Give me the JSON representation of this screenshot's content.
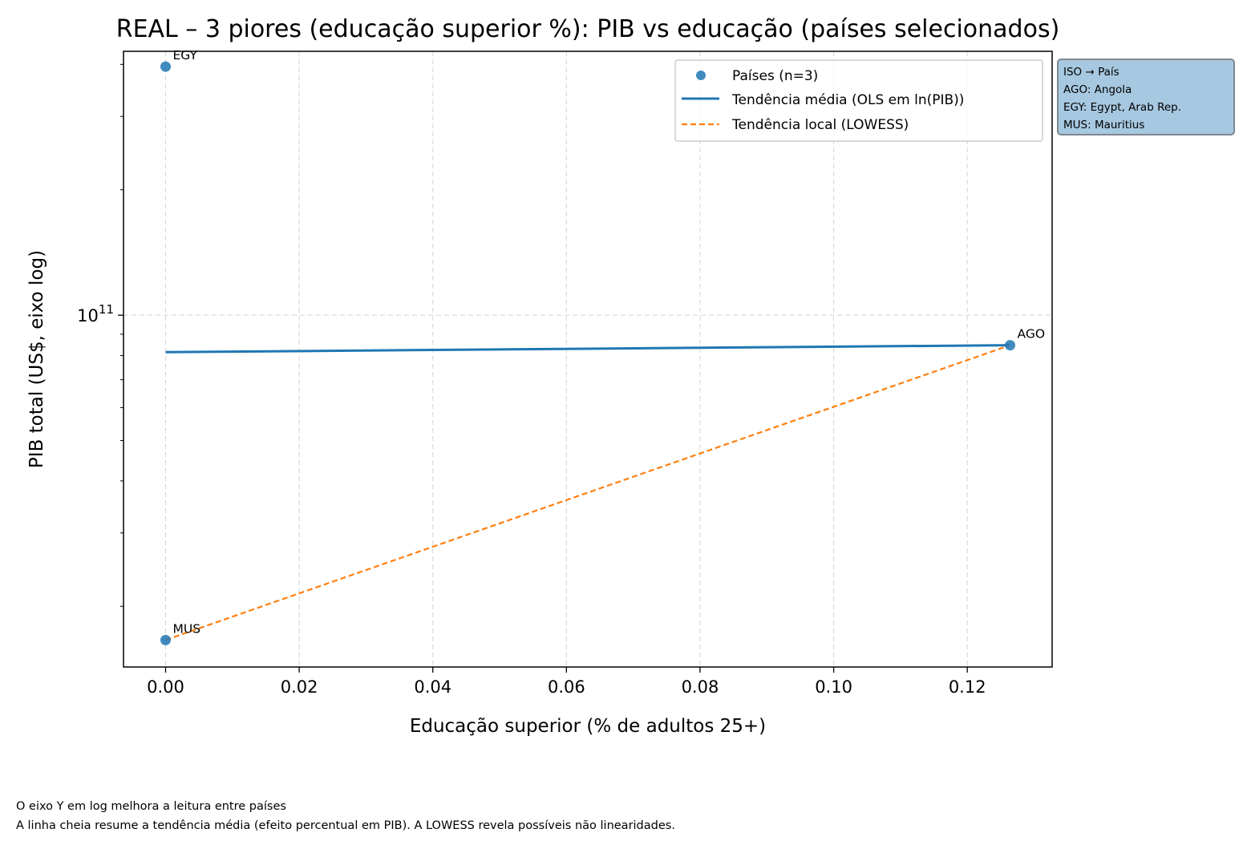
{
  "chart_data": {
    "type": "scatter",
    "title": "REAL – 3 piores (educação superior %): PIB vs educação (países selecionados)",
    "xlabel": "Educação superior (% de adultos 25+)",
    "ylabel": "PIB total (US$, eixo log)",
    "x_scale": "linear",
    "y_scale": "log",
    "xlim": [
      -0.0063,
      0.1327
    ],
    "ylim": [
      14300000000,
      430000000000
    ],
    "x_ticks": [
      0.0,
      0.02,
      0.04,
      0.06,
      0.08,
      0.1,
      0.12
    ],
    "x_tick_labels": [
      "0.00",
      "0.02",
      "0.04",
      "0.06",
      "0.08",
      "0.10",
      "0.12"
    ],
    "y_major_ticks": [
      100000000000
    ],
    "y_major_tick_labels": [
      "10",
      "11"
    ],
    "y_minor_ticks": [
      20000000000,
      30000000000,
      40000000000,
      50000000000,
      60000000000,
      70000000000,
      80000000000,
      90000000000,
      200000000000,
      300000000000,
      400000000000
    ],
    "grid": true,
    "legend_position": "top-right",
    "points": [
      {
        "label": "EGY",
        "x": 0.0,
        "y": 395000000000
      },
      {
        "label": "AGO",
        "x": 0.1264,
        "y": 84700000000
      },
      {
        "label": "MUS",
        "x": 0.0,
        "y": 16600000000
      }
    ],
    "series": [
      {
        "name": "Países (n=3)",
        "kind": "scatter",
        "color": "#1f77b4"
      },
      {
        "name": "Tendência média (OLS em ln(PIB))",
        "kind": "line",
        "color": "#1f77b4",
        "x": [
          0.0,
          0.1264
        ],
        "y": [
          81500000000,
          84700000000
        ]
      },
      {
        "name": "Tendência local (LOWESS)",
        "kind": "dashed-line",
        "color": "#ff7f0e",
        "x": [
          0.0,
          0.1264
        ],
        "y": [
          16600000000,
          84700000000
        ]
      }
    ]
  },
  "iso_box": {
    "title": "ISO → País",
    "entries": [
      "AGO: Angola",
      "EGY: Egypt, Arab Rep.",
      "MUS: Mauritius"
    ]
  },
  "footnotes": [
    "O eixo Y em log melhora a leitura entre países",
    "A linha cheia resume a tendência média (efeito percentual em PIB). A LOWESS revela possíveis não linearidades."
  ]
}
